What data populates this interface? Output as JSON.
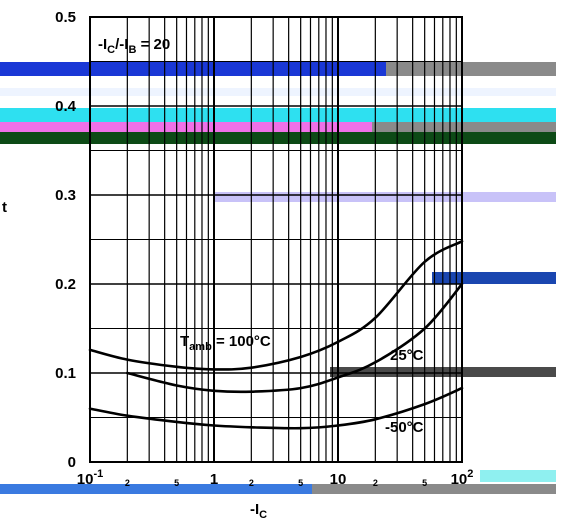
{
  "chart_data": {
    "type": "line",
    "title": "",
    "xscale": "log",
    "xlim": [
      0.1,
      100
    ],
    "ylim": [
      0,
      0.5
    ],
    "y_ticks": [
      0,
      0.1,
      0.2,
      0.3,
      0.4,
      0.5
    ],
    "y_tick_labels": [
      "0",
      "0.1",
      "0.2",
      "0.3",
      "0.4",
      "0.5"
    ],
    "x_major_ticks": [
      0.1,
      1,
      10,
      100
    ],
    "x_major_labels": [
      {
        "base": "10",
        "exp": "-1"
      },
      {
        "base": "1",
        "exp": ""
      },
      {
        "base": "10",
        "exp": ""
      },
      {
        "base": "10",
        "exp": "2"
      }
    ],
    "x_minor_ticks": [
      0.2,
      0.5,
      2,
      5,
      20,
      50
    ],
    "x_minor_labels": [
      "2",
      "5",
      "2",
      "5",
      "2",
      "5"
    ],
    "xlabel": {
      "main": "-I",
      "sub": "C"
    },
    "ylabel_fragment": "t",
    "grid": true,
    "condition": {
      "a": "-I",
      "a_sub": "C",
      "slash": "/",
      "b": "-I",
      "b_sub": "B",
      "rest": " = 20"
    },
    "series": [
      {
        "label_main": "T",
        "label_sub": "amb",
        "label_rest": " = 100°C",
        "x": [
          0.1,
          0.2,
          0.5,
          1,
          2,
          5,
          10,
          20,
          50,
          100
        ],
        "y": [
          0.126,
          0.115,
          0.107,
          0.104,
          0.106,
          0.118,
          0.135,
          0.162,
          0.225,
          0.248
        ]
      },
      {
        "label_main": "25°C",
        "label_sub": "",
        "label_rest": "",
        "x": [
          0.2,
          0.5,
          1,
          2,
          5,
          10,
          20,
          50,
          100
        ],
        "y": [
          0.1,
          0.086,
          0.08,
          0.079,
          0.083,
          0.095,
          0.112,
          0.15,
          0.2
        ]
      },
      {
        "label_main": "-50°C",
        "label_sub": "",
        "label_rest": "",
        "x": [
          0.1,
          0.2,
          0.5,
          1,
          2,
          5,
          10,
          20,
          50,
          100
        ],
        "y": [
          0.06,
          0.052,
          0.045,
          0.041,
          0.039,
          0.038,
          0.041,
          0.048,
          0.065,
          0.083
        ]
      }
    ]
  }
}
